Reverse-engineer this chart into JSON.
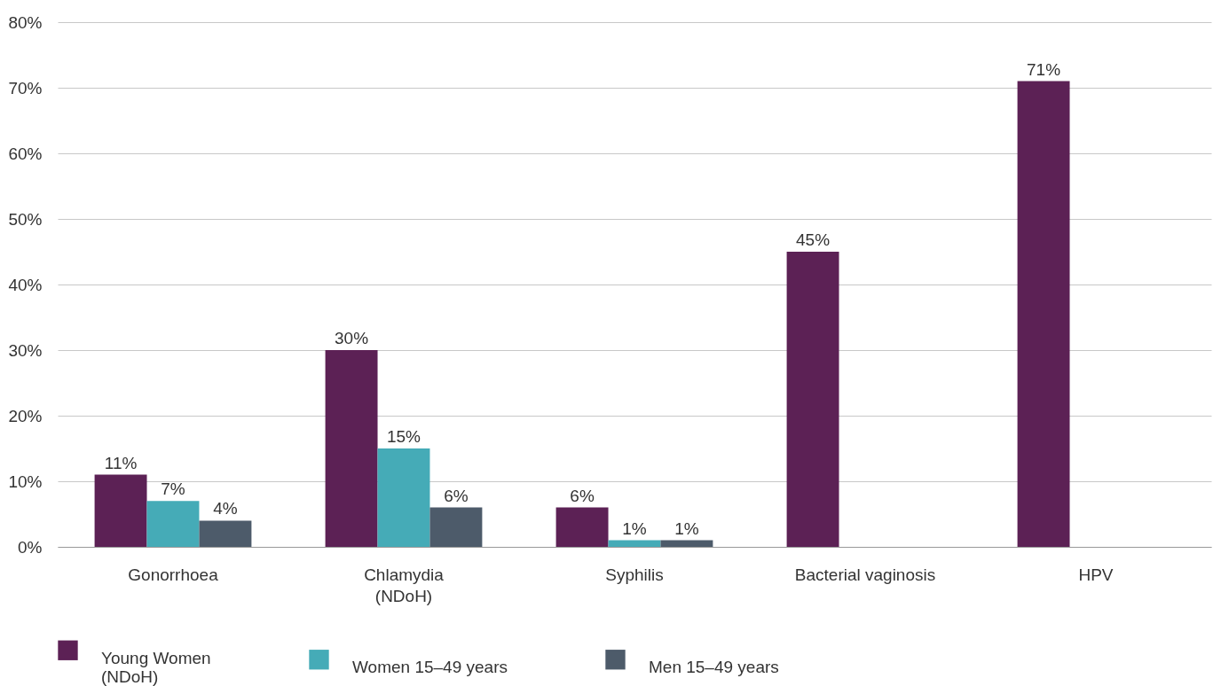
{
  "chart_data": {
    "type": "bar",
    "categories": [
      "Gonorrhoea",
      "Chlamydia\n(NDoH)",
      "Syphilis",
      "Bacterial vaginosis",
      "HPV"
    ],
    "series": [
      {
        "name": "Young Women\n(NDoH)",
        "color": "#5c2155",
        "values": [
          11,
          30,
          6,
          45,
          71
        ],
        "value_labels": [
          "11%",
          "30%",
          "6%",
          "45%",
          "71%"
        ]
      },
      {
        "name": "Women 15–49 years",
        "color": "#45abb7",
        "values": [
          7,
          15,
          1,
          null,
          null
        ],
        "value_labels": [
          "7%",
          "15%",
          "1%",
          null,
          null
        ]
      },
      {
        "name": "Men 15–49 years",
        "color": "#4d5b6a",
        "values": [
          4,
          6,
          1,
          null,
          null
        ],
        "value_labels": [
          "4%",
          "6%",
          "1%",
          null,
          null
        ]
      }
    ],
    "ylim": [
      0,
      80
    ],
    "yticks": [
      {
        "value": 0,
        "label": "0%"
      },
      {
        "value": 10,
        "label": "10%"
      },
      {
        "value": 20,
        "label": "20%"
      },
      {
        "value": 30,
        "label": "30%"
      },
      {
        "value": 40,
        "label": "40%"
      },
      {
        "value": 50,
        "label": "50%"
      },
      {
        "value": 60,
        "label": "60%"
      },
      {
        "value": 70,
        "label": "70%"
      },
      {
        "value": 80,
        "label": "80%"
      }
    ],
    "grid": "y",
    "legend": "bottom"
  }
}
